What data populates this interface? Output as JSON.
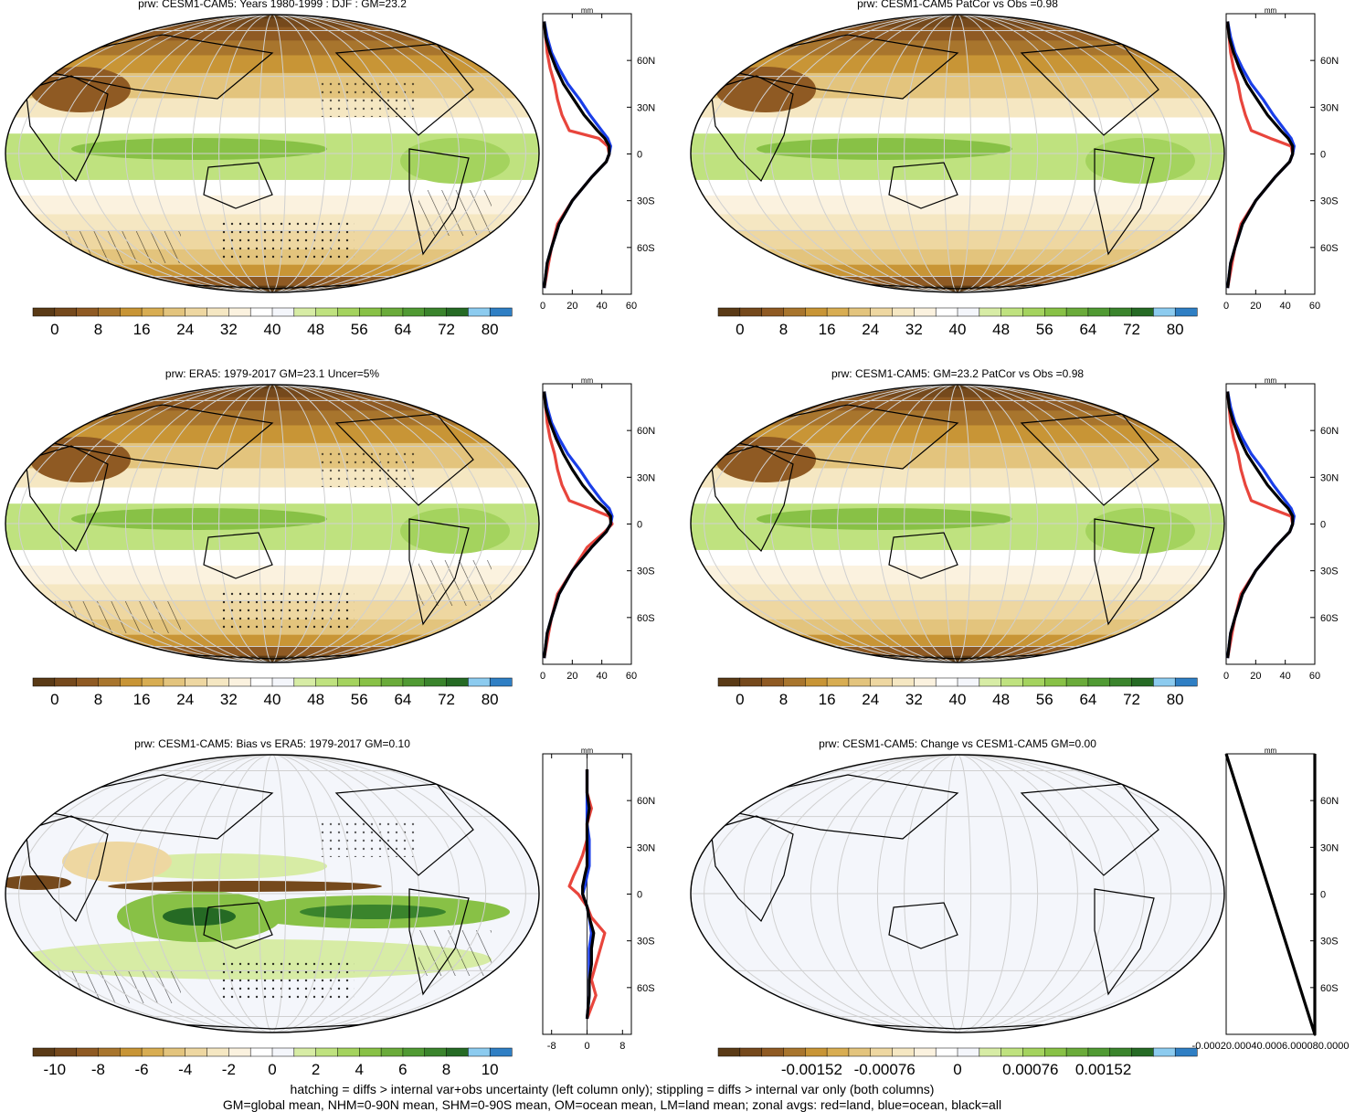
{
  "colors": {
    "precip_scale": [
      "#5a3a16",
      "#75491c",
      "#8f5a23",
      "#a8752d",
      "#c89536",
      "#d8ad52",
      "#e3c47d",
      "#eed7a1",
      "#f5e7c2",
      "#fbf2df",
      "#ffffff",
      "#f4f6fb",
      "#d7eca5",
      "#bfe27f",
      "#a4d35e",
      "#88c146",
      "#6aab3a",
      "#509a33",
      "#3a842c",
      "#256a24",
      "#8ccbef",
      "#2f7fc4"
    ],
    "diff_scale": [
      "#5a3a16",
      "#75491c",
      "#8f5a23",
      "#a8752d",
      "#c89536",
      "#d8ad52",
      "#e3c47d",
      "#eed7a1",
      "#f5e7c2",
      "#fbf2df",
      "#ffffff",
      "#f4f6fb",
      "#d7eca5",
      "#bfe27f",
      "#a4d35e",
      "#88c146",
      "#6aab3a",
      "#509a33",
      "#3a842c",
      "#256a24",
      "#8ccbef",
      "#2f7fc4"
    ],
    "land": "#e8453c",
    "ocean": "#1a3ee8",
    "all": "#000000"
  },
  "chart_data": [
    {
      "type": "heatmap",
      "title": "prw: CESM1-CAM5: Years 1980-1999 : DJF : GM=23.2",
      "colorbar_ticks": [
        "0",
        "8",
        "16",
        "24",
        "32",
        "40",
        "48",
        "56",
        "64",
        "72",
        "80"
      ],
      "projection": "robinson",
      "field": "precipitable water, DJF climatology",
      "overlays": [
        "hatching",
        "stippling"
      ]
    },
    {
      "type": "line",
      "panel": "zonal mean",
      "unit": "mm",
      "xlim": [
        0,
        60
      ],
      "x_ticks": [
        "0",
        "20",
        "40",
        "60"
      ],
      "ylim": [
        -90,
        90
      ],
      "y_ticks": [
        "60N",
        "30N",
        "0",
        "30S",
        "60S"
      ],
      "series": [
        {
          "color": "#e8453c",
          "lat": [
            -86,
            -70,
            -60,
            -45,
            -30,
            -15,
            -5,
            0,
            5,
            10,
            15,
            25,
            35,
            45,
            55,
            65,
            75,
            85
          ],
          "values": [
            1,
            4,
            6,
            10,
            20,
            33,
            43,
            45,
            44,
            38,
            18,
            13,
            10,
            8,
            5,
            3,
            2,
            1
          ]
        },
        {
          "color": "#1a3ee8",
          "lat": [
            -86,
            -70,
            -60,
            -45,
            -30,
            -15,
            -5,
            0,
            5,
            10,
            15,
            25,
            35,
            45,
            55,
            65,
            75,
            85
          ],
          "values": [
            1,
            3,
            6,
            11,
            20,
            33,
            43,
            45,
            46,
            44,
            40,
            32,
            25,
            17,
            11,
            6,
            3,
            1
          ]
        },
        {
          "color": "#000000",
          "lat": [
            -86,
            -70,
            -60,
            -45,
            -30,
            -15,
            -5,
            0,
            5,
            10,
            15,
            25,
            35,
            45,
            55,
            65,
            75,
            85
          ],
          "values": [
            1,
            3,
            6,
            11,
            20,
            33,
            43,
            45,
            45,
            42,
            37,
            28,
            21,
            14,
            9,
            5,
            2,
            1
          ]
        }
      ]
    },
    {
      "type": "heatmap",
      "title": "prw: CESM1-CAM5 PatCor vs Obs =0.98",
      "colorbar_ticks": [
        "0",
        "8",
        "16",
        "24",
        "32",
        "40",
        "48",
        "56",
        "64",
        "72",
        "80"
      ],
      "projection": "robinson",
      "field": "precipitable water, DJF climatology"
    },
    {
      "type": "line",
      "panel": "zonal mean",
      "unit": "mm",
      "xlim": [
        0,
        60
      ],
      "x_ticks": [
        "0",
        "20",
        "40",
        "60"
      ],
      "ylim": [
        -90,
        90
      ],
      "y_ticks": [
        "60N",
        "30N",
        "0",
        "30S",
        "60S"
      ],
      "series": [
        {
          "color": "#e8453c",
          "lat": [
            -86,
            -70,
            -60,
            -45,
            -30,
            -15,
            -5,
            0,
            5,
            10,
            15,
            25,
            35,
            45,
            55,
            65,
            75,
            85
          ],
          "values": [
            1,
            4,
            6,
            10,
            20,
            33,
            43,
            45,
            44,
            30,
            17,
            13,
            10,
            8,
            5,
            3,
            2,
            1
          ]
        },
        {
          "color": "#1a3ee8",
          "lat": [
            -86,
            -70,
            -60,
            -45,
            -30,
            -15,
            -5,
            0,
            5,
            10,
            15,
            25,
            35,
            45,
            55,
            65,
            75,
            85
          ],
          "values": [
            1,
            3,
            6,
            11,
            20,
            33,
            43,
            45,
            46,
            44,
            40,
            32,
            25,
            17,
            11,
            6,
            3,
            1
          ]
        },
        {
          "color": "#000000",
          "lat": [
            -86,
            -70,
            -60,
            -45,
            -30,
            -15,
            -5,
            0,
            5,
            10,
            15,
            25,
            35,
            45,
            55,
            65,
            75,
            85
          ],
          "values": [
            1,
            3,
            6,
            11,
            20,
            33,
            43,
            45,
            45,
            42,
            37,
            28,
            21,
            14,
            9,
            5,
            2,
            1
          ]
        }
      ]
    },
    {
      "type": "heatmap",
      "title": "prw: ERA5: 1979-2017 GM=23.1 Uncer=5%",
      "colorbar_ticks": [
        "0",
        "8",
        "16",
        "24",
        "32",
        "40",
        "48",
        "56",
        "64",
        "72",
        "80"
      ],
      "projection": "robinson",
      "field": "precipitable water, DJF climatology",
      "overlays": [
        "hatching",
        "stippling"
      ]
    },
    {
      "type": "line",
      "panel": "zonal mean",
      "unit": "mm",
      "xlim": [
        0,
        60
      ],
      "x_ticks": [
        "0",
        "20",
        "40",
        "60"
      ],
      "ylim": [
        -90,
        90
      ],
      "y_ticks": [
        "60N",
        "30N",
        "0",
        "30S",
        "60S"
      ],
      "series": [
        {
          "color": "#e8453c",
          "lat": [
            -86,
            -70,
            -60,
            -45,
            -30,
            -15,
            -5,
            0,
            5,
            10,
            15,
            25,
            35,
            45,
            55,
            65,
            75,
            85
          ],
          "values": [
            1,
            4,
            6,
            10,
            20,
            30,
            42,
            47,
            45,
            32,
            18,
            13,
            10,
            8,
            5,
            3,
            2,
            1
          ]
        },
        {
          "color": "#1a3ee8",
          "lat": [
            -86,
            -70,
            -60,
            -45,
            -30,
            -15,
            -5,
            0,
            5,
            10,
            15,
            25,
            35,
            45,
            55,
            65,
            75,
            85
          ],
          "values": [
            1,
            3,
            6,
            11,
            20,
            33,
            43,
            46,
            47,
            45,
            40,
            32,
            25,
            17,
            11,
            6,
            3,
            1
          ]
        },
        {
          "color": "#000000",
          "lat": [
            -86,
            -70,
            -60,
            -45,
            -30,
            -15,
            -5,
            0,
            5,
            10,
            15,
            25,
            35,
            45,
            55,
            65,
            75,
            85
          ],
          "values": [
            1,
            3,
            6,
            11,
            20,
            33,
            43,
            46,
            46,
            42,
            36,
            27,
            20,
            14,
            9,
            5,
            2,
            1
          ]
        }
      ]
    },
    {
      "type": "heatmap",
      "title": "prw: CESM1-CAM5: GM=23.2 PatCor vs Obs =0.98",
      "colorbar_ticks": [
        "0",
        "8",
        "16",
        "24",
        "32",
        "40",
        "48",
        "56",
        "64",
        "72",
        "80"
      ],
      "projection": "robinson",
      "field": "precipitable water, DJF climatology"
    },
    {
      "type": "line",
      "panel": "zonal mean",
      "unit": "mm",
      "xlim": [
        0,
        60
      ],
      "x_ticks": [
        "0",
        "20",
        "40",
        "60"
      ],
      "ylim": [
        -90,
        90
      ],
      "y_ticks": [
        "60N",
        "30N",
        "0",
        "30S",
        "60S"
      ],
      "series": [
        {
          "color": "#e8453c",
          "lat": [
            -86,
            -70,
            -60,
            -45,
            -30,
            -15,
            -5,
            0,
            5,
            10,
            15,
            25,
            35,
            45,
            55,
            65,
            75,
            85
          ],
          "values": [
            1,
            4,
            6,
            10,
            20,
            33,
            43,
            45,
            44,
            30,
            17,
            13,
            10,
            8,
            5,
            3,
            2,
            1
          ]
        },
        {
          "color": "#1a3ee8",
          "lat": [
            -86,
            -70,
            -60,
            -45,
            -30,
            -15,
            -5,
            0,
            5,
            10,
            15,
            25,
            35,
            45,
            55,
            65,
            75,
            85
          ],
          "values": [
            1,
            3,
            6,
            11,
            20,
            33,
            43,
            45,
            46,
            44,
            40,
            32,
            25,
            17,
            11,
            6,
            3,
            1
          ]
        },
        {
          "color": "#000000",
          "lat": [
            -86,
            -70,
            -60,
            -45,
            -30,
            -15,
            -5,
            0,
            5,
            10,
            15,
            25,
            35,
            45,
            55,
            65,
            75,
            85
          ],
          "values": [
            1,
            3,
            6,
            11,
            20,
            33,
            43,
            45,
            45,
            42,
            37,
            28,
            21,
            14,
            9,
            5,
            2,
            1
          ]
        }
      ]
    },
    {
      "type": "heatmap",
      "title": "prw: CESM1-CAM5: Bias vs ERA5: 1979-2017 GM=0.10",
      "colorbar_ticks": [
        "-10",
        "-8",
        "-6",
        "-4",
        "-2",
        "0",
        "2",
        "4",
        "6",
        "8",
        "10"
      ],
      "projection": "robinson",
      "field": "precipitable water difference",
      "overlays": [
        "hatching",
        "stippling"
      ]
    },
    {
      "type": "line",
      "panel": "zonal mean",
      "unit": "mm",
      "xlim": [
        -10,
        10
      ],
      "x_ticks": [
        "-8",
        "0",
        "8"
      ],
      "ylim": [
        -90,
        90
      ],
      "y_ticks": [
        "60N",
        "30N",
        "0",
        "30S",
        "60S"
      ],
      "series": [
        {
          "color": "#e8453c",
          "lat": [
            -80,
            -65,
            -55,
            -45,
            -35,
            -25,
            -15,
            -8,
            0,
            5,
            12,
            18,
            25,
            35,
            45,
            55,
            65,
            80
          ],
          "values": [
            0,
            2,
            1,
            2,
            3,
            4,
            1,
            0,
            -2,
            -4,
            -3,
            -2,
            -1,
            0,
            0,
            1,
            0,
            0
          ]
        },
        {
          "color": "#1a3ee8",
          "lat": [
            -80,
            -65,
            -55,
            -45,
            -35,
            -25,
            -15,
            -8,
            0,
            5,
            12,
            18,
            25,
            35,
            45,
            55,
            65,
            80
          ],
          "values": [
            0,
            0.5,
            0.5,
            0.5,
            0.5,
            1,
            0.5,
            0,
            -1,
            -0.5,
            0,
            0.5,
            0.5,
            0.5,
            0,
            0,
            0,
            0
          ]
        },
        {
          "color": "#000000",
          "lat": [
            -80,
            -65,
            -55,
            -45,
            -35,
            -25,
            -15,
            -8,
            0,
            5,
            12,
            18,
            25,
            35,
            45,
            55,
            65,
            80
          ],
          "values": [
            0,
            0.5,
            0.5,
            1,
            1,
            1.5,
            0.5,
            0,
            -1,
            -1,
            -0.5,
            0,
            0,
            0,
            0,
            0.5,
            0,
            0
          ]
        }
      ]
    },
    {
      "type": "heatmap",
      "title": "prw: CESM1-CAM5: Change vs CESM1-CAM5 GM=0.00",
      "colorbar_ticks": [
        "-0.00152",
        "-0.00076",
        "0",
        "0.00076",
        "0.00152"
      ],
      "projection": "robinson",
      "field": "change (all zero)"
    },
    {
      "type": "line",
      "panel": "zonal mean",
      "unit": "mm",
      "x_ticks": [
        "-0.00020.00040.0006.000080.0000"
      ],
      "ylim": [
        -90,
        90
      ],
      "y_ticks": [
        "60N",
        "30N",
        "0",
        "30S",
        "60S"
      ],
      "series": [
        {
          "color": "#000000",
          "lat": [
            -90,
            90
          ],
          "values": [
            0,
            0
          ]
        }
      ]
    }
  ],
  "footer": {
    "line1": "hatching = diffs > internal var+obs uncertainty (left column only); stippling = diffs > internal var only (both columns)",
    "line2": "GM=global mean, NHM=0-90N mean, SHM=0-90S mean, OM=ocean mean, LM=land mean; zonal avgs: red=land, blue=ocean, black=all"
  }
}
